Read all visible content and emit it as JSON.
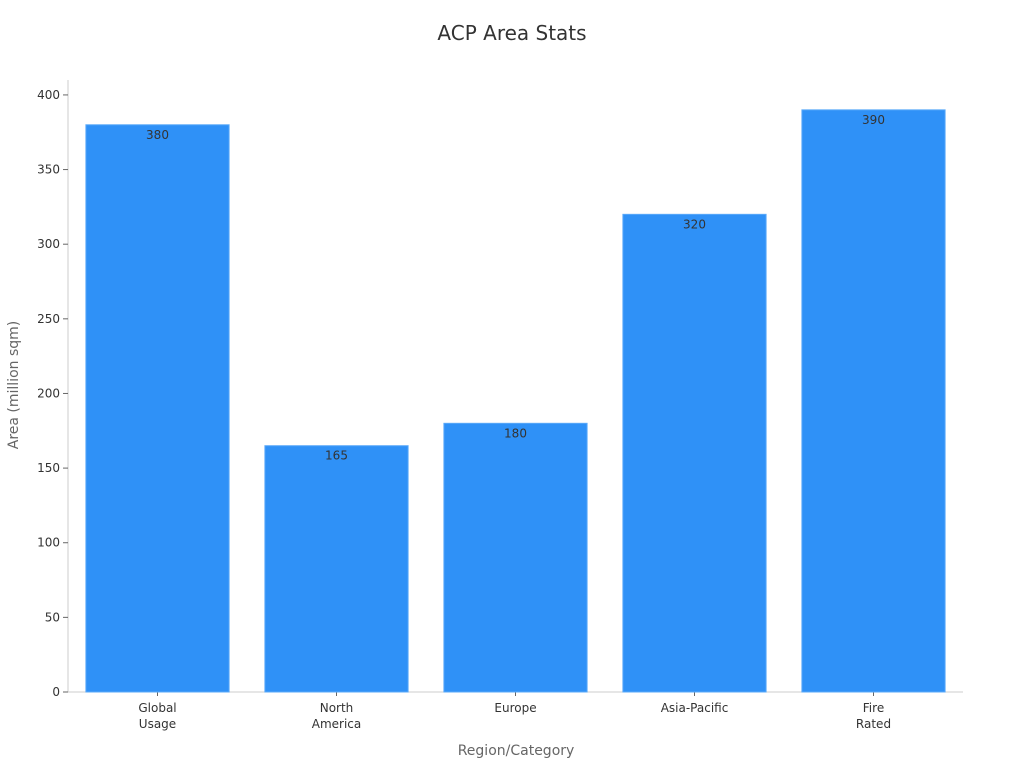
{
  "chart_data": {
    "type": "bar",
    "title": "ACP Area Stats",
    "xlabel": "Region/Category",
    "ylabel": "Area (million sqm)",
    "categories": [
      "Global\nUsage",
      "North\nAmerica",
      "Europe",
      "Asia-Pacific",
      "Fire\nRated"
    ],
    "values": [
      380,
      165,
      180,
      320,
      390
    ],
    "ylim": [
      0,
      410
    ],
    "yticks": [
      0,
      50,
      100,
      150,
      200,
      250,
      300,
      350,
      400
    ],
    "data_labels": true,
    "grid": false,
    "legend": "none",
    "colors": {
      "bar": "#2f91f7",
      "bar_edge": "#5aa9f9"
    }
  }
}
